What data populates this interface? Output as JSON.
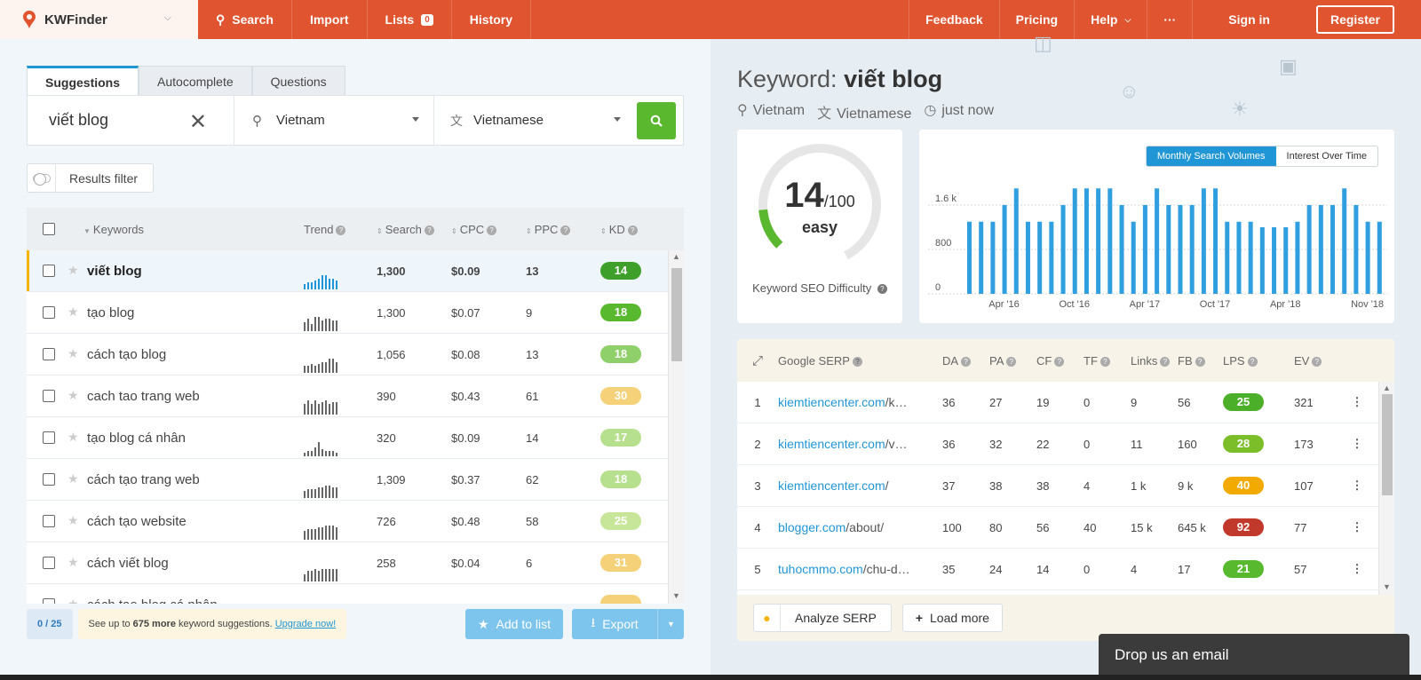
{
  "brand": {
    "name": "KWFinder"
  },
  "nav": {
    "search": "Search",
    "import": "Import",
    "lists": "Lists",
    "lists_count": "0",
    "history": "History",
    "feedback": "Feedback",
    "pricing": "Pricing",
    "help": "Help",
    "more": "···",
    "signin": "Sign in",
    "register": "Register"
  },
  "tabs": [
    "Suggestions",
    "Autocomplete",
    "Questions"
  ],
  "search": {
    "keyword": "viết blog",
    "location": "Vietnam",
    "language": "Vietnamese"
  },
  "filter": {
    "label": "Results filter"
  },
  "kw_table": {
    "headers": {
      "keywords": "Keywords",
      "trend": "Trend",
      "search": "Search",
      "cpc": "CPC",
      "ppc": "PPC",
      "kd": "KD"
    },
    "rows": [
      {
        "keyword": "viết blog",
        "search": "1,300",
        "cpc": "$0.09",
        "ppc": "13",
        "kd": "14",
        "kd_color": "#3e9f2a",
        "trend": [
          3,
          4,
          4,
          5,
          6,
          8,
          8,
          6,
          6,
          5
        ]
      },
      {
        "keyword": "tạo blog",
        "search": "1,300",
        "cpc": "$0.07",
        "ppc": "9",
        "kd": "18",
        "kd_color": "#58b82e",
        "trend": [
          5,
          7,
          4,
          8,
          8,
          6,
          7,
          7,
          6,
          6
        ]
      },
      {
        "keyword": "cách tạo blog",
        "search": "1,056",
        "cpc": "$0.08",
        "ppc": "13",
        "kd": "18",
        "kd_color": "#8fd06a",
        "trend": [
          4,
          4,
          5,
          4,
          5,
          6,
          6,
          8,
          8,
          6
        ]
      },
      {
        "keyword": "cach tao trang web",
        "search": "390",
        "cpc": "$0.43",
        "ppc": "61",
        "kd": "30",
        "kd_color": "#f5d27a",
        "trend": [
          6,
          8,
          6,
          8,
          6,
          7,
          8,
          6,
          7,
          7
        ]
      },
      {
        "keyword": "tạo blog cá nhân",
        "search": "320",
        "cpc": "$0.09",
        "ppc": "14",
        "kd": "17",
        "kd_color": "#b6df8e",
        "trend": [
          2,
          3,
          3,
          5,
          8,
          4,
          3,
          3,
          3,
          2
        ]
      },
      {
        "keyword": "cách tạo trang web",
        "search": "1,309",
        "cpc": "$0.37",
        "ppc": "62",
        "kd": "18",
        "kd_color": "#b6df8e",
        "trend": [
          4,
          5,
          5,
          5,
          6,
          6,
          7,
          7,
          6,
          6
        ]
      },
      {
        "keyword": "cách tạo website",
        "search": "726",
        "cpc": "$0.48",
        "ppc": "58",
        "kd": "25",
        "kd_color": "#c7e69a",
        "trend": [
          5,
          6,
          6,
          6,
          7,
          7,
          8,
          8,
          8,
          7
        ]
      },
      {
        "keyword": "cách viết blog",
        "search": "258",
        "cpc": "$0.04",
        "ppc": "6",
        "kd": "31",
        "kd_color": "#f5d27a",
        "trend": [
          4,
          6,
          6,
          7,
          6,
          7,
          7,
          7,
          7,
          7
        ]
      },
      {
        "keyword": "cách tạo blog cá nhân",
        "search": "",
        "cpc": "",
        "ppc": "",
        "kd": "",
        "kd_color": "#f5d27a",
        "trend": []
      }
    ]
  },
  "bottom": {
    "counter": "0 / 25",
    "upsell_pre": "See up to",
    "upsell_num": "675 more",
    "upsell_post": "keyword suggestions.",
    "upsell_link": "Upgrade now!",
    "add_to_list": "Add to list",
    "export": "Export"
  },
  "detail": {
    "title_prefix": "Keyword:",
    "keyword": "viết blog",
    "location": "Vietnam",
    "language": "Vietnamese",
    "time": "just now",
    "kd_value": "14",
    "kd_max": "/100",
    "kd_label": "easy",
    "kd_title": "Keyword SEO Difficulty",
    "chart_tab_on": "Monthly Search Volumes",
    "chart_tab_off": "Interest Over Time"
  },
  "chart_data": {
    "type": "bar",
    "y_ticks": [
      "1.6 k",
      "800",
      "0"
    ],
    "x_labels": [
      "Apr '16",
      "Oct '16",
      "Apr '17",
      "Oct '17",
      "Apr '18",
      "Nov '18"
    ],
    "ylim": [
      0,
      2000
    ],
    "values": [
      1300,
      1300,
      1300,
      1600,
      1900,
      1300,
      1300,
      1300,
      1600,
      1900,
      1900,
      1900,
      1900,
      1600,
      1300,
      1600,
      1900,
      1600,
      1600,
      1600,
      1900,
      1900,
      1300,
      1300,
      1300,
      1200,
      1200,
      1200,
      1300,
      1600,
      1600,
      1600,
      1900,
      1600,
      1300,
      1300
    ]
  },
  "serp": {
    "headers": {
      "title": "Google SERP",
      "da": "DA",
      "pa": "PA",
      "cf": "CF",
      "tf": "TF",
      "links": "Links",
      "fb": "FB",
      "lps": "LPS",
      "ev": "EV"
    },
    "rows": [
      {
        "n": "1",
        "domain": "kiemtiencenter.com",
        "path": "/k…",
        "da": "36",
        "pa": "27",
        "cf": "19",
        "tf": "0",
        "links": "9",
        "fb": "56",
        "lps": "25",
        "lps_color": "#4caf2a",
        "ev": "321"
      },
      {
        "n": "2",
        "domain": "kiemtiencenter.com",
        "path": "/v…",
        "da": "36",
        "pa": "32",
        "cf": "22",
        "tf": "0",
        "links": "11",
        "fb": "160",
        "lps": "28",
        "lps_color": "#7cbd2a",
        "ev": "173"
      },
      {
        "n": "3",
        "domain": "kiemtiencenter.com",
        "path": "/",
        "da": "37",
        "pa": "38",
        "cf": "38",
        "tf": "4",
        "links": "1 k",
        "fb": "9 k",
        "lps": "40",
        "lps_color": "#f2a900",
        "ev": "107"
      },
      {
        "n": "4",
        "domain": "blogger.com",
        "path": "/about/",
        "da": "100",
        "pa": "80",
        "cf": "56",
        "tf": "40",
        "links": "15 k",
        "fb": "645 k",
        "lps": "92",
        "lps_color": "#c0392b",
        "ev": "77"
      },
      {
        "n": "5",
        "domain": "tuhocmmo.com",
        "path": "/chu-d…",
        "da": "35",
        "pa": "24",
        "cf": "14",
        "tf": "0",
        "links": "4",
        "fb": "17",
        "lps": "21",
        "lps_color": "#58b82e",
        "ev": "57"
      }
    ],
    "analyze": "Analyze SERP",
    "load_more": "Load more"
  },
  "chat": {
    "label": "Drop us an email"
  }
}
